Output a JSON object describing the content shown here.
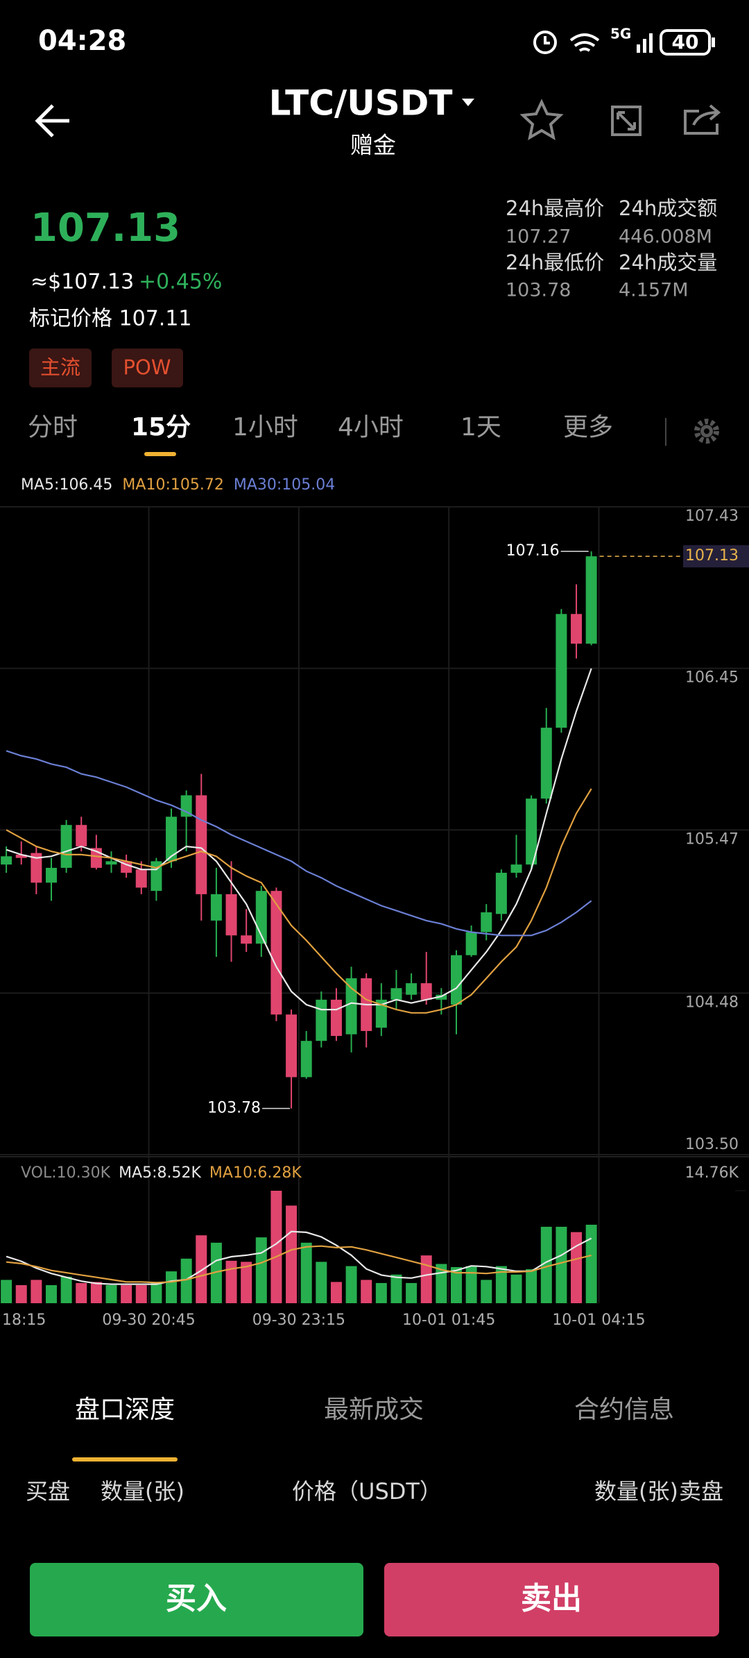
{
  "status": {
    "time": "04:28",
    "network": "5G",
    "battery": "40"
  },
  "header": {
    "pair": "LTC/USDT",
    "subtitle": "赠金"
  },
  "ticker": {
    "last": "107.13",
    "approx": "≈$107.13",
    "change": "+0.45%",
    "mark": "标记价格 107.11",
    "tags": [
      "主流",
      "POW"
    ]
  },
  "stats": [
    {
      "label": "24h最高价",
      "value": "107.27"
    },
    {
      "label": "24h成交额",
      "value": "446.008M"
    },
    {
      "label": "24h最低价",
      "value": "103.78"
    },
    {
      "label": "24h成交量",
      "value": "4.157M"
    }
  ],
  "tabs": [
    "分时",
    "15分",
    "1小时",
    "4小时",
    "1天",
    "更多"
  ],
  "depth_tabs": [
    "盘口深度",
    "最新成交",
    "合约信息"
  ],
  "columns": [
    "买盘",
    "数量(张)",
    "价格（USDT）",
    "数量(张)",
    "卖盘"
  ],
  "buttons": {
    "buy": "买入",
    "sell": "卖出"
  },
  "chart_data": {
    "type": "candlestick",
    "up_color": "#27ae4f",
    "down_color": "#e0456e",
    "grid": true,
    "x_labels": [
      "18:15",
      "09-30  20:45",
      "09-30  23:15",
      "10-01  01:45",
      "10-01  04:15"
    ],
    "open": [
      105.26,
      105.32,
      105.33,
      105.15,
      105.24,
      105.5,
      105.36,
      105.26,
      105.28,
      105.23,
      105.1,
      105.28,
      105.55,
      105.68,
      104.92,
      105.08,
      104.83,
      104.78,
      105.1,
      104.35,
      103.97,
      104.19,
      104.44,
      104.23,
      104.57,
      104.27,
      104.44,
      104.47,
      104.54,
      104.44,
      104.41,
      104.71,
      104.85,
      104.96,
      105.21,
      105.26,
      105.66,
      106.09,
      106.78,
      106.6
    ],
    "high": [
      105.37,
      105.4,
      105.37,
      105.3,
      105.53,
      105.55,
      105.44,
      105.34,
      105.32,
      105.28,
      105.3,
      105.6,
      105.71,
      105.81,
      105.24,
      105.28,
      104.99,
      105.13,
      105.12,
      104.38,
      104.25,
      104.49,
      104.51,
      104.64,
      104.6,
      104.54,
      104.62,
      104.6,
      104.73,
      104.51,
      104.74,
      104.89,
      105.02,
      105.23,
      105.44,
      105.68,
      106.21,
      106.81,
      106.96,
      107.16
    ],
    "low": [
      105.21,
      105.26,
      105.08,
      105.04,
      105.21,
      105.34,
      105.23,
      105.21,
      105.18,
      105.08,
      105.04,
      105.24,
      105.34,
      104.92,
      104.7,
      104.67,
      104.73,
      104.7,
      104.31,
      103.78,
      103.96,
      104.15,
      104.19,
      104.12,
      104.15,
      104.22,
      104.38,
      104.44,
      104.41,
      104.35,
      104.23,
      104.7,
      104.8,
      104.92,
      105.18,
      105.23,
      105.63,
      106.06,
      106.51,
      106.59
    ],
    "close": [
      105.31,
      105.3,
      105.15,
      105.24,
      105.5,
      105.37,
      105.24,
      105.28,
      105.21,
      105.12,
      105.28,
      105.55,
      105.68,
      105.08,
      105.08,
      104.83,
      104.78,
      105.1,
      104.35,
      103.97,
      104.19,
      104.44,
      104.22,
      104.57,
      104.25,
      104.44,
      104.51,
      104.54,
      104.44,
      104.47,
      104.71,
      104.85,
      104.97,
      105.21,
      105.26,
      105.66,
      106.09,
      106.78,
      106.6,
      107.13
    ],
    "ma": [
      {
        "name": "MA5:106.45",
        "color": "#e8e8e8",
        "values": [
          105.35,
          105.32,
          105.3,
          105.31,
          105.34,
          105.37,
          105.34,
          105.3,
          105.26,
          105.23,
          105.23,
          105.31,
          105.37,
          105.36,
          105.28,
          105.15,
          105.02,
          104.83,
          104.64,
          104.49,
          104.41,
          104.38,
          104.38,
          104.42,
          104.41,
          104.41,
          104.44,
          104.42,
          104.44,
          104.46,
          104.51,
          104.62,
          104.73,
          104.86,
          105.02,
          105.23,
          105.57,
          105.9,
          106.19,
          106.45
        ]
      },
      {
        "name": "MA10:105.72",
        "color": "#e0a040",
        "values": [
          105.47,
          105.42,
          105.37,
          105.34,
          105.32,
          105.32,
          105.31,
          105.3,
          105.28,
          105.26,
          105.24,
          105.28,
          105.31,
          105.34,
          105.31,
          105.24,
          105.19,
          105.15,
          105.02,
          104.89,
          104.8,
          104.7,
          104.6,
          104.51,
          104.44,
          104.41,
          104.38,
          104.36,
          104.36,
          104.38,
          104.41,
          104.47,
          104.57,
          104.67,
          104.76,
          104.92,
          105.12,
          105.37,
          105.57,
          105.72
        ]
      },
      {
        "name": "MA30:105.04",
        "color": "#6b7fd4",
        "values": [
          105.95,
          105.92,
          105.9,
          105.87,
          105.85,
          105.81,
          105.79,
          105.76,
          105.73,
          105.69,
          105.65,
          105.62,
          105.58,
          105.53,
          105.49,
          105.44,
          105.4,
          105.36,
          105.32,
          105.28,
          105.22,
          105.18,
          105.13,
          105.09,
          105.05,
          105.01,
          104.98,
          104.95,
          104.92,
          104.9,
          104.87,
          104.85,
          104.84,
          104.83,
          104.83,
          104.83,
          104.86,
          104.91,
          104.97,
          105.04
        ]
      }
    ],
    "ylim": [
      103.5,
      107.43
    ],
    "yticks": [
      107.43,
      106.45,
      105.47,
      104.48,
      {
        "value": 103.5,
        "label": "103.50"
      }
    ],
    "volume": {
      "label": "VOL:10.30K",
      "values": [
        3.06,
        2.37,
        3.06,
        2.37,
        3.48,
        2.65,
        2.79,
        2.37,
        2.37,
        2.37,
        2.79,
        4.18,
        5.85,
        8.91,
        7.94,
        5.57,
        5.43,
        8.64,
        14.76,
        12.81,
        7.94,
        5.43,
        2.79,
        4.87,
        3.06,
        2.65,
        3.76,
        2.65,
        6.27,
        5.15,
        4.74,
        4.87,
        3.06,
        4.87,
        3.76,
        4.46,
        10.03,
        10.03,
        9.33,
        10.3
      ],
      "ylim": [
        0,
        14.76
      ],
      "yticks": [
        {
          "value": 14.76,
          "label": "14.76K"
        }
      ],
      "ma": [
        {
          "name": "MA5:8.52K",
          "color": "#e8e8e8",
          "values": [
            6.13,
            5.5,
            4.6,
            3.9,
            3.4,
            2.9,
            2.6,
            2.5,
            2.5,
            2.5,
            2.5,
            2.9,
            3.1,
            4.3,
            5.6,
            6.1,
            6.3,
            6.6,
            7.8,
            9.4,
            9.3,
            8.7,
            7.6,
            6.3,
            4.5,
            3.7,
            3.4,
            3.3,
            3.7,
            4.0,
            4.3,
            4.9,
            4.8,
            4.5,
            4.2,
            4.2,
            5.4,
            6.3,
            7.5,
            8.52
          ]
        },
        {
          "name": "MA10:6.28K",
          "color": "#e0a040",
          "values": [
            5.4,
            5.2,
            4.8,
            4.3,
            4.0,
            3.7,
            3.4,
            3.1,
            2.8,
            2.8,
            2.7,
            2.8,
            3.1,
            3.6,
            4.1,
            4.5,
            4.8,
            5.3,
            6.1,
            7.0,
            7.4,
            7.5,
            7.3,
            7.4,
            7.0,
            6.5,
            6.0,
            5.5,
            5.0,
            4.4,
            4.0,
            4.0,
            3.9,
            4.1,
            4.1,
            4.2,
            4.8,
            5.3,
            5.8,
            6.28
          ]
        }
      ]
    }
  }
}
